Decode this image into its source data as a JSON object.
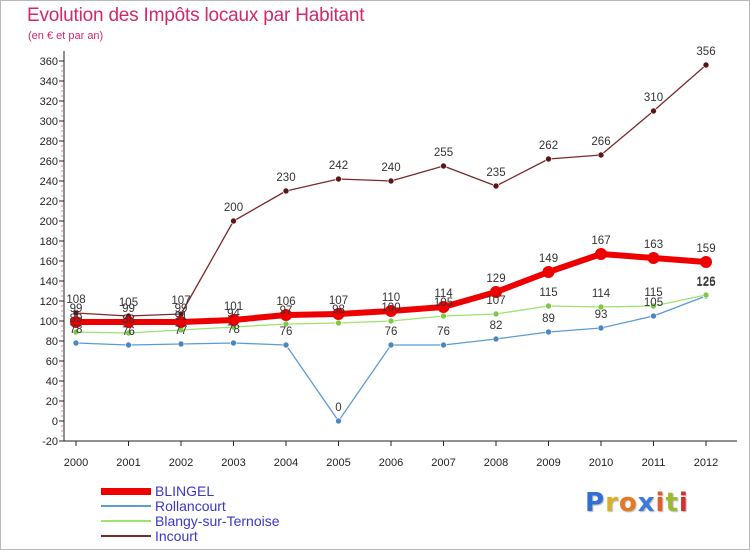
{
  "title": "Evolution des Impôts locaux par Habitant",
  "subtitle": "(en € et par an)",
  "brand": {
    "text": "Proxiti",
    "colors": [
      "#2f6fd6",
      "#d8b12c",
      "#e67822",
      "#3f79d9",
      "#e45a2d",
      "#9bbb2f",
      "#d32f2f"
    ]
  },
  "chart_data": {
    "type": "line",
    "categories": [
      "2000",
      "2001",
      "2002",
      "2003",
      "2004",
      "2005",
      "2006",
      "2007",
      "2008",
      "2009",
      "2010",
      "2011",
      "2012"
    ],
    "ylim": [
      -20,
      360
    ],
    "yticks": [
      -20,
      0,
      20,
      40,
      60,
      80,
      100,
      120,
      140,
      160,
      180,
      200,
      220,
      240,
      260,
      280,
      300,
      320,
      340,
      360
    ],
    "xlabel": "",
    "ylabel": "",
    "grid": false,
    "legend_position": "bottom-left",
    "series": [
      {
        "name": "Incourt",
        "color": "#7a2a2a",
        "marker_color": "#5a1616",
        "values": [
          108,
          105,
          107,
          200,
          230,
          242,
          240,
          255,
          235,
          262,
          266,
          310,
          356
        ]
      },
      {
        "name": "Rollancourt",
        "color": "#5b9bd5",
        "marker_color": "#4a86c0",
        "values": [
          78,
          76,
          77,
          78,
          76,
          0,
          76,
          76,
          82,
          89,
          93,
          105,
          125
        ]
      },
      {
        "name": "Blangy-sur-Ternoise",
        "color": "#9de36f",
        "marker_color": "#7cc94a",
        "values": [
          89,
          88,
          91,
          94,
          97,
          98,
          100,
          105,
          107,
          115,
          114,
          115,
          126
        ]
      },
      {
        "name": "BLINGEL",
        "color": "#ee0000",
        "marker_color": "#ee0000",
        "values": [
          99,
          99,
          99,
          101,
          106,
          107,
          110,
          114,
          129,
          149,
          167,
          163,
          159
        ]
      }
    ],
    "labels": {
      "Incourt": [
        "108",
        "105",
        "107",
        "200",
        "230",
        "242",
        "240",
        "255",
        "235",
        "262",
        "266",
        "310",
        "356"
      ],
      "Rollancourt": [
        "78",
        "76",
        "77",
        "78",
        "76",
        "0",
        "76",
        "76",
        "82",
        "89",
        "93",
        "105",
        "125"
      ],
      "Blangy-sur-Ternoise": [
        "89",
        "88",
        "91",
        "94",
        "97",
        "98",
        "100",
        "105",
        "107",
        "115",
        "114",
        "115",
        "126"
      ],
      "BLINGEL": [
        "99",
        "99",
        "99",
        "101",
        "106",
        "107",
        "110",
        "114",
        "129",
        "149",
        "167",
        "163",
        "159"
      ]
    },
    "legend_order": [
      "BLINGEL",
      "Rollancourt",
      "Blangy-sur-Ternoise",
      "Incourt"
    ]
  }
}
